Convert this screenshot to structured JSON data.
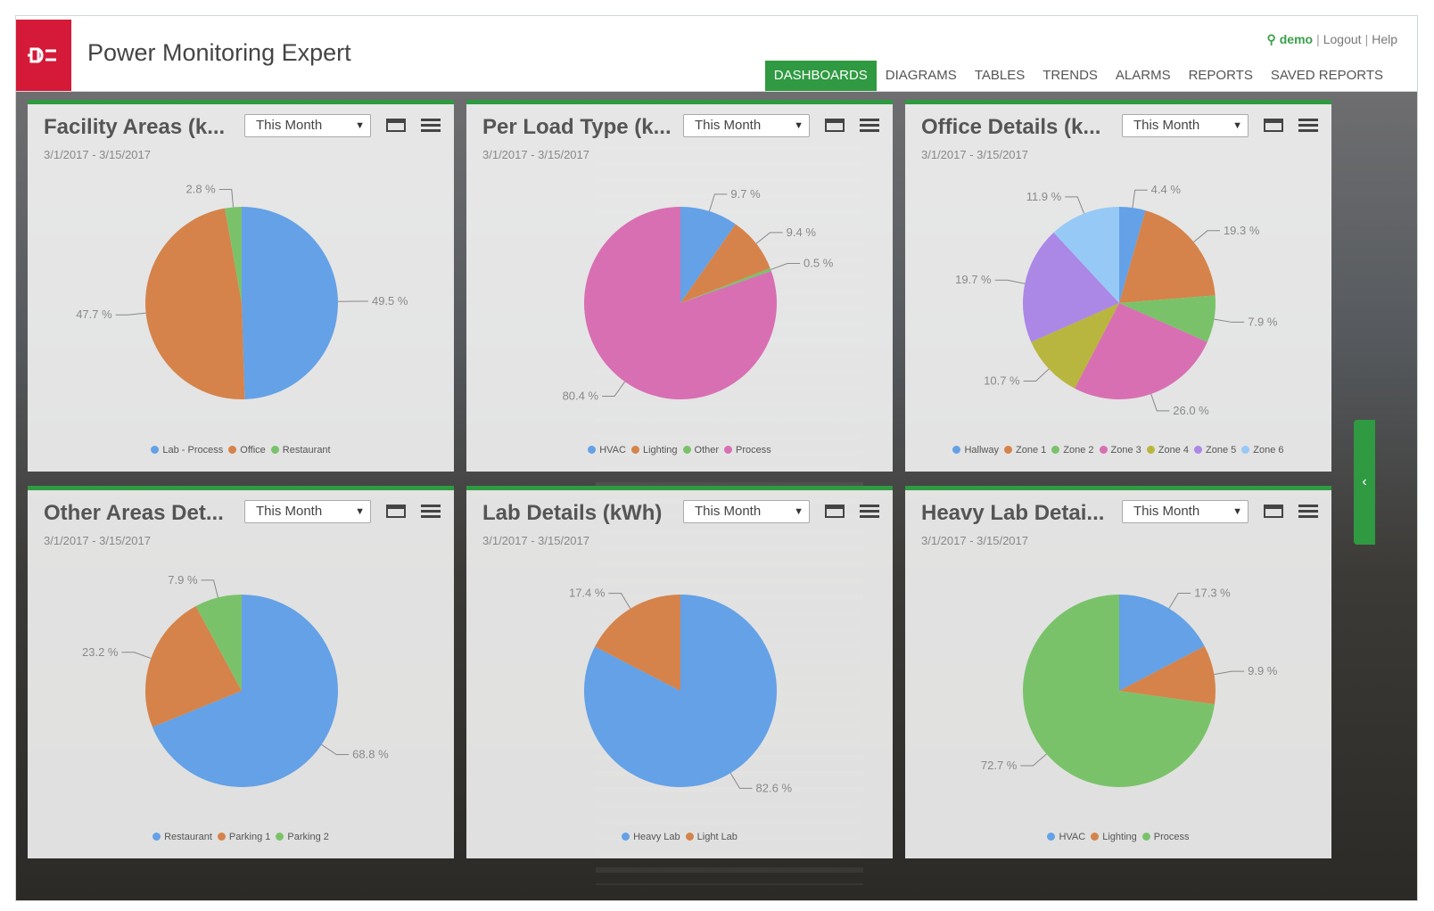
{
  "header": {
    "app_title": "Power Monitoring Expert",
    "user": "demo",
    "logout": "Logout",
    "help": "Help",
    "logo_icon": "plug-icon",
    "nav": [
      "DASHBOARDS",
      "DIAGRAMS",
      "TABLES",
      "TRENDS",
      "ALARMS",
      "REPORTS",
      "SAVED REPORTS"
    ],
    "active_nav": "DASHBOARDS"
  },
  "colors": {
    "accent": "#2f9a41",
    "brand": "#d41a38",
    "blue": "#64a1e6",
    "orange": "#d5834a",
    "green": "#7ac26a",
    "pink": "#d86fb3",
    "olive": "#b8b63f",
    "purple": "#ab87e6",
    "lightblue": "#97c9f6"
  },
  "side_toggle": "‹",
  "panels": [
    {
      "title": "Facility Areas (k...",
      "select": "This Month",
      "date": "3/1/2017 - 3/15/2017"
    },
    {
      "title": "Per Load Type (k...",
      "select": "This Month",
      "date": "3/1/2017 - 3/15/2017"
    },
    {
      "title": "Office Details (k...",
      "select": "This Month",
      "date": "3/1/2017 - 3/15/2017"
    },
    {
      "title": "Other Areas Det...",
      "select": "This Month",
      "date": "3/1/2017 - 3/15/2017"
    },
    {
      "title": "Lab Details (kWh)",
      "select": "This Month",
      "date": "3/1/2017 - 3/15/2017"
    },
    {
      "title": "Heavy Lab Detai...",
      "select": "This Month",
      "date": "3/1/2017 - 3/15/2017"
    }
  ],
  "chart_data": [
    {
      "type": "pie",
      "labels": [
        "Lab - Process",
        "Office",
        "Restaurant"
      ],
      "values": [
        49.5,
        47.7,
        2.8
      ],
      "colors": [
        "#64a1e6",
        "#d5834a",
        "#7ac26a"
      ]
    },
    {
      "type": "pie",
      "labels": [
        "HVAC",
        "Lighting",
        "Other",
        "Process"
      ],
      "values": [
        9.7,
        9.4,
        0.5,
        80.4
      ],
      "colors": [
        "#64a1e6",
        "#d5834a",
        "#7ac26a",
        "#d86fb3"
      ]
    },
    {
      "type": "pie",
      "labels": [
        "Hallway",
        "Zone 1",
        "Zone 2",
        "Zone 3",
        "Zone 4",
        "Zone 5",
        "Zone 6"
      ],
      "values": [
        4.4,
        19.3,
        7.9,
        26.0,
        10.7,
        19.7,
        11.9
      ],
      "colors": [
        "#64a1e6",
        "#d5834a",
        "#7ac26a",
        "#d86fb3",
        "#b8b63f",
        "#ab87e6",
        "#97c9f6"
      ]
    },
    {
      "type": "pie",
      "labels": [
        "Restaurant",
        "Parking 1",
        "Parking 2"
      ],
      "values": [
        68.8,
        23.2,
        7.9
      ],
      "colors": [
        "#64a1e6",
        "#d5834a",
        "#7ac26a"
      ]
    },
    {
      "type": "pie",
      "labels": [
        "Heavy Lab",
        "Light Lab"
      ],
      "values": [
        82.6,
        17.4
      ],
      "colors": [
        "#64a1e6",
        "#d5834a"
      ]
    },
    {
      "type": "pie",
      "labels": [
        "HVAC",
        "Lighting",
        "Process"
      ],
      "values": [
        17.3,
        9.9,
        72.7
      ],
      "colors": [
        "#64a1e6",
        "#d5834a",
        "#7ac26a"
      ]
    }
  ]
}
